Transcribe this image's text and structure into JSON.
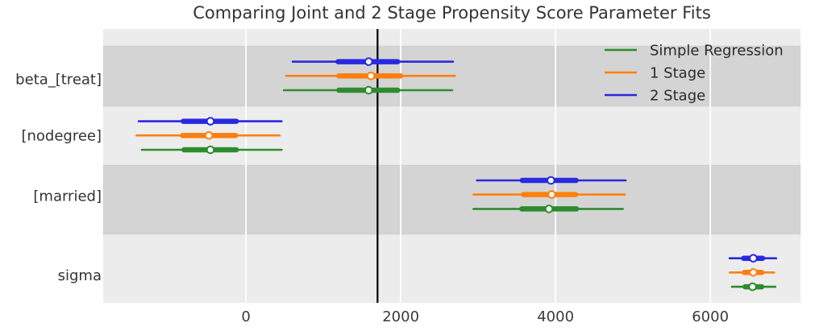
{
  "chart_data": {
    "type": "forest",
    "title": "Comparing Joint and 2 Stage Propensity Score Parameter Fits",
    "xlabel": "",
    "ylabel": "",
    "xlim": [
      -1845,
      7165
    ],
    "x_tick_values": [
      0,
      2000,
      4000,
      6000
    ],
    "x_tick_labels": [
      "0",
      "2000",
      "4000",
      "6000"
    ],
    "grid": "on",
    "legend_position": "upper right",
    "reference_line_x": 1700,
    "series": [
      {
        "name": "Simple Regression",
        "color": "#2d8c2d"
      },
      {
        "name": "1 Stage",
        "color": "#ff7f0e"
      },
      {
        "name": "2 Stage",
        "color": "#2929e0"
      }
    ],
    "parameters": [
      "beta_[treat]",
      "[nodegree]",
      "[married]",
      "sigma"
    ],
    "rows": [
      {
        "parameter": "beta_[treat]",
        "estimates": [
          {
            "series": "2 Stage",
            "ci_low": 605,
            "ci_high": 2675,
            "q_low": 1190,
            "q_high": 1960,
            "point": 1585
          },
          {
            "series": "1 Stage",
            "ci_low": 520,
            "ci_high": 2700,
            "q_low": 1200,
            "q_high": 2000,
            "point": 1615
          },
          {
            "series": "Simple Regression",
            "ci_low": 490,
            "ci_high": 2665,
            "q_low": 1200,
            "q_high": 1960,
            "point": 1585
          }
        ]
      },
      {
        "parameter": "[nodegree]",
        "estimates": [
          {
            "series": "2 Stage",
            "ci_low": -1385,
            "ci_high": 460,
            "q_low": -810,
            "q_high": -125,
            "point": -460
          },
          {
            "series": "1 Stage",
            "ci_low": -1415,
            "ci_high": 435,
            "q_low": -820,
            "q_high": -135,
            "point": -480
          },
          {
            "series": "Simple Regression",
            "ci_low": -1345,
            "ci_high": 460,
            "q_low": -800,
            "q_high": -125,
            "point": -460
          }
        ]
      },
      {
        "parameter": "[married]",
        "estimates": [
          {
            "series": "2 Stage",
            "ci_low": 2985,
            "ci_high": 4905,
            "q_low": 3570,
            "q_high": 4265,
            "point": 3940
          },
          {
            "series": "1 Stage",
            "ci_low": 2940,
            "ci_high": 4895,
            "q_low": 3585,
            "q_high": 4260,
            "point": 3950
          },
          {
            "series": "Simple Regression",
            "ci_low": 2940,
            "ci_high": 4870,
            "q_low": 3565,
            "q_high": 4270,
            "point": 3915
          }
        ]
      },
      {
        "parameter": "sigma",
        "estimates": [
          {
            "series": "2 Stage",
            "ci_low": 6250,
            "ci_high": 6850,
            "q_low": 6430,
            "q_high": 6675,
            "point": 6555
          },
          {
            "series": "1 Stage",
            "ci_low": 6250,
            "ci_high": 6825,
            "q_low": 6440,
            "q_high": 6665,
            "point": 6555
          },
          {
            "series": "Simple Regression",
            "ci_low": 6280,
            "ci_high": 6840,
            "q_low": 6450,
            "q_high": 6665,
            "point": 6545
          }
        ]
      }
    ],
    "colors": {
      "figure_background": "#ffffff",
      "band_light": "#ececec",
      "band_dark": "#d4d4d4",
      "gridline": "#ffffff",
      "reference_line": "#000000",
      "marker_fill": "#ffffff",
      "title_text": "#333333",
      "tick_text": "#3a3a3a",
      "label_text": "#333333",
      "legend_text": "#2b2b2b"
    }
  }
}
